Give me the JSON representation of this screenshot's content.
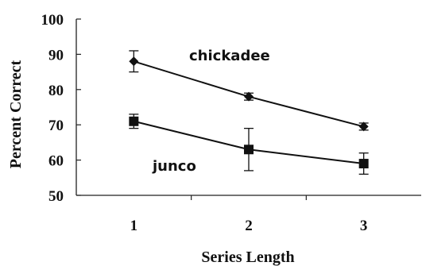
{
  "chart_data": {
    "type": "line",
    "xlabel": "Series Length",
    "ylabel": "Percent Correct",
    "x": [
      1,
      2,
      3
    ],
    "xlim": [
      0.5,
      3.5
    ],
    "ylim": [
      50,
      100
    ],
    "yticks": [
      50,
      60,
      70,
      80,
      90,
      100
    ],
    "grid": false,
    "legend": "none",
    "series": [
      {
        "name": "chickadee",
        "marker": "diamond",
        "color": "#111111",
        "values": [
          88,
          78,
          69.5
        ],
        "error": [
          3,
          1,
          1
        ]
      },
      {
        "name": "junco",
        "marker": "square",
        "color": "#111111",
        "values": [
          71,
          63,
          59
        ],
        "error": [
          2,
          6,
          3
        ]
      }
    ]
  }
}
